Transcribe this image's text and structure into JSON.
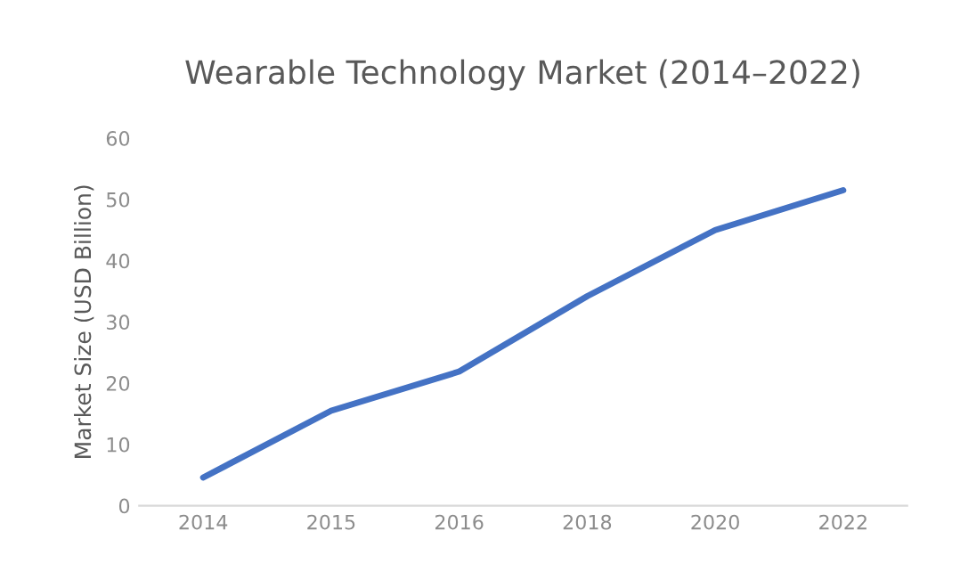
{
  "chart_data": {
    "type": "line",
    "title": "Wearable Technology Market (2014–2022)",
    "ylabel": "Market Size (USD Billion)",
    "categories": [
      "2014",
      "2015",
      "2016",
      "2018",
      "2020",
      "2022"
    ],
    "series": [
      {
        "color": "#4472c4",
        "values": [
          4.6,
          15.5,
          21.9,
          34.2,
          45.0,
          51.5
        ]
      }
    ],
    "ylim": [
      0,
      60
    ],
    "yticks": [
      0,
      10,
      20,
      30,
      40,
      50,
      60
    ],
    "grid": false,
    "marker": "none",
    "line_style": "solid"
  }
}
